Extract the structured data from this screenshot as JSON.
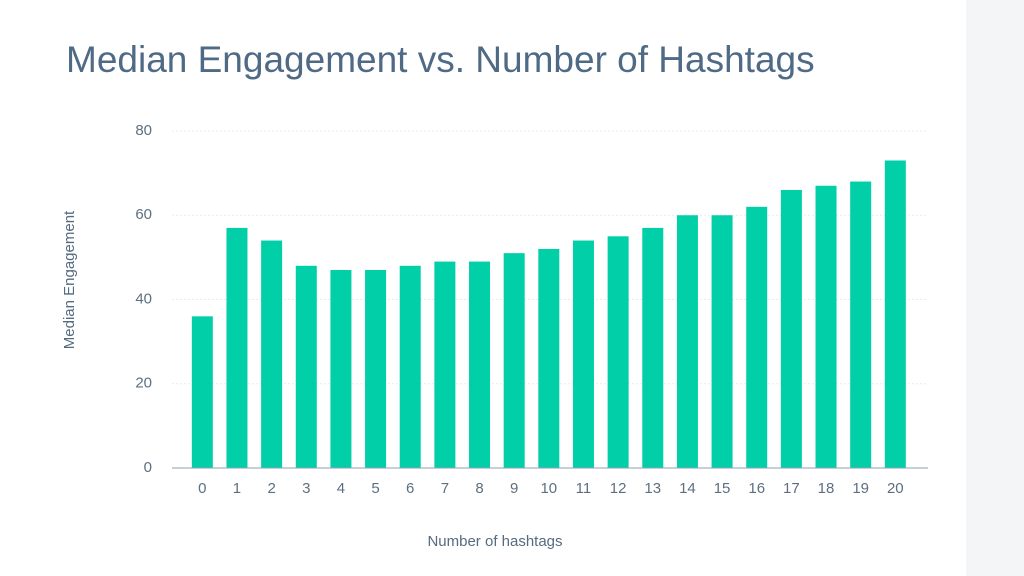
{
  "chart_data": {
    "type": "bar",
    "title": "Median Engagement vs. Number of Hashtags",
    "x_label": "Number of hashtags",
    "y_label": "Median Engagement",
    "categories": [
      "0",
      "1",
      "2",
      "3",
      "4",
      "5",
      "6",
      "7",
      "8",
      "9",
      "10",
      "11",
      "12",
      "13",
      "14",
      "15",
      "16",
      "17",
      "18",
      "19",
      "20"
    ],
    "values": [
      36,
      57,
      54,
      48,
      47,
      47,
      48,
      49,
      49,
      51,
      52,
      54,
      55,
      57,
      60,
      60,
      62,
      66,
      67,
      68,
      73
    ],
    "color": "#00cfa8",
    "ylim": [
      0,
      80
    ],
    "yticks": [
      0,
      20,
      40,
      60,
      80
    ],
    "grid": true
  }
}
